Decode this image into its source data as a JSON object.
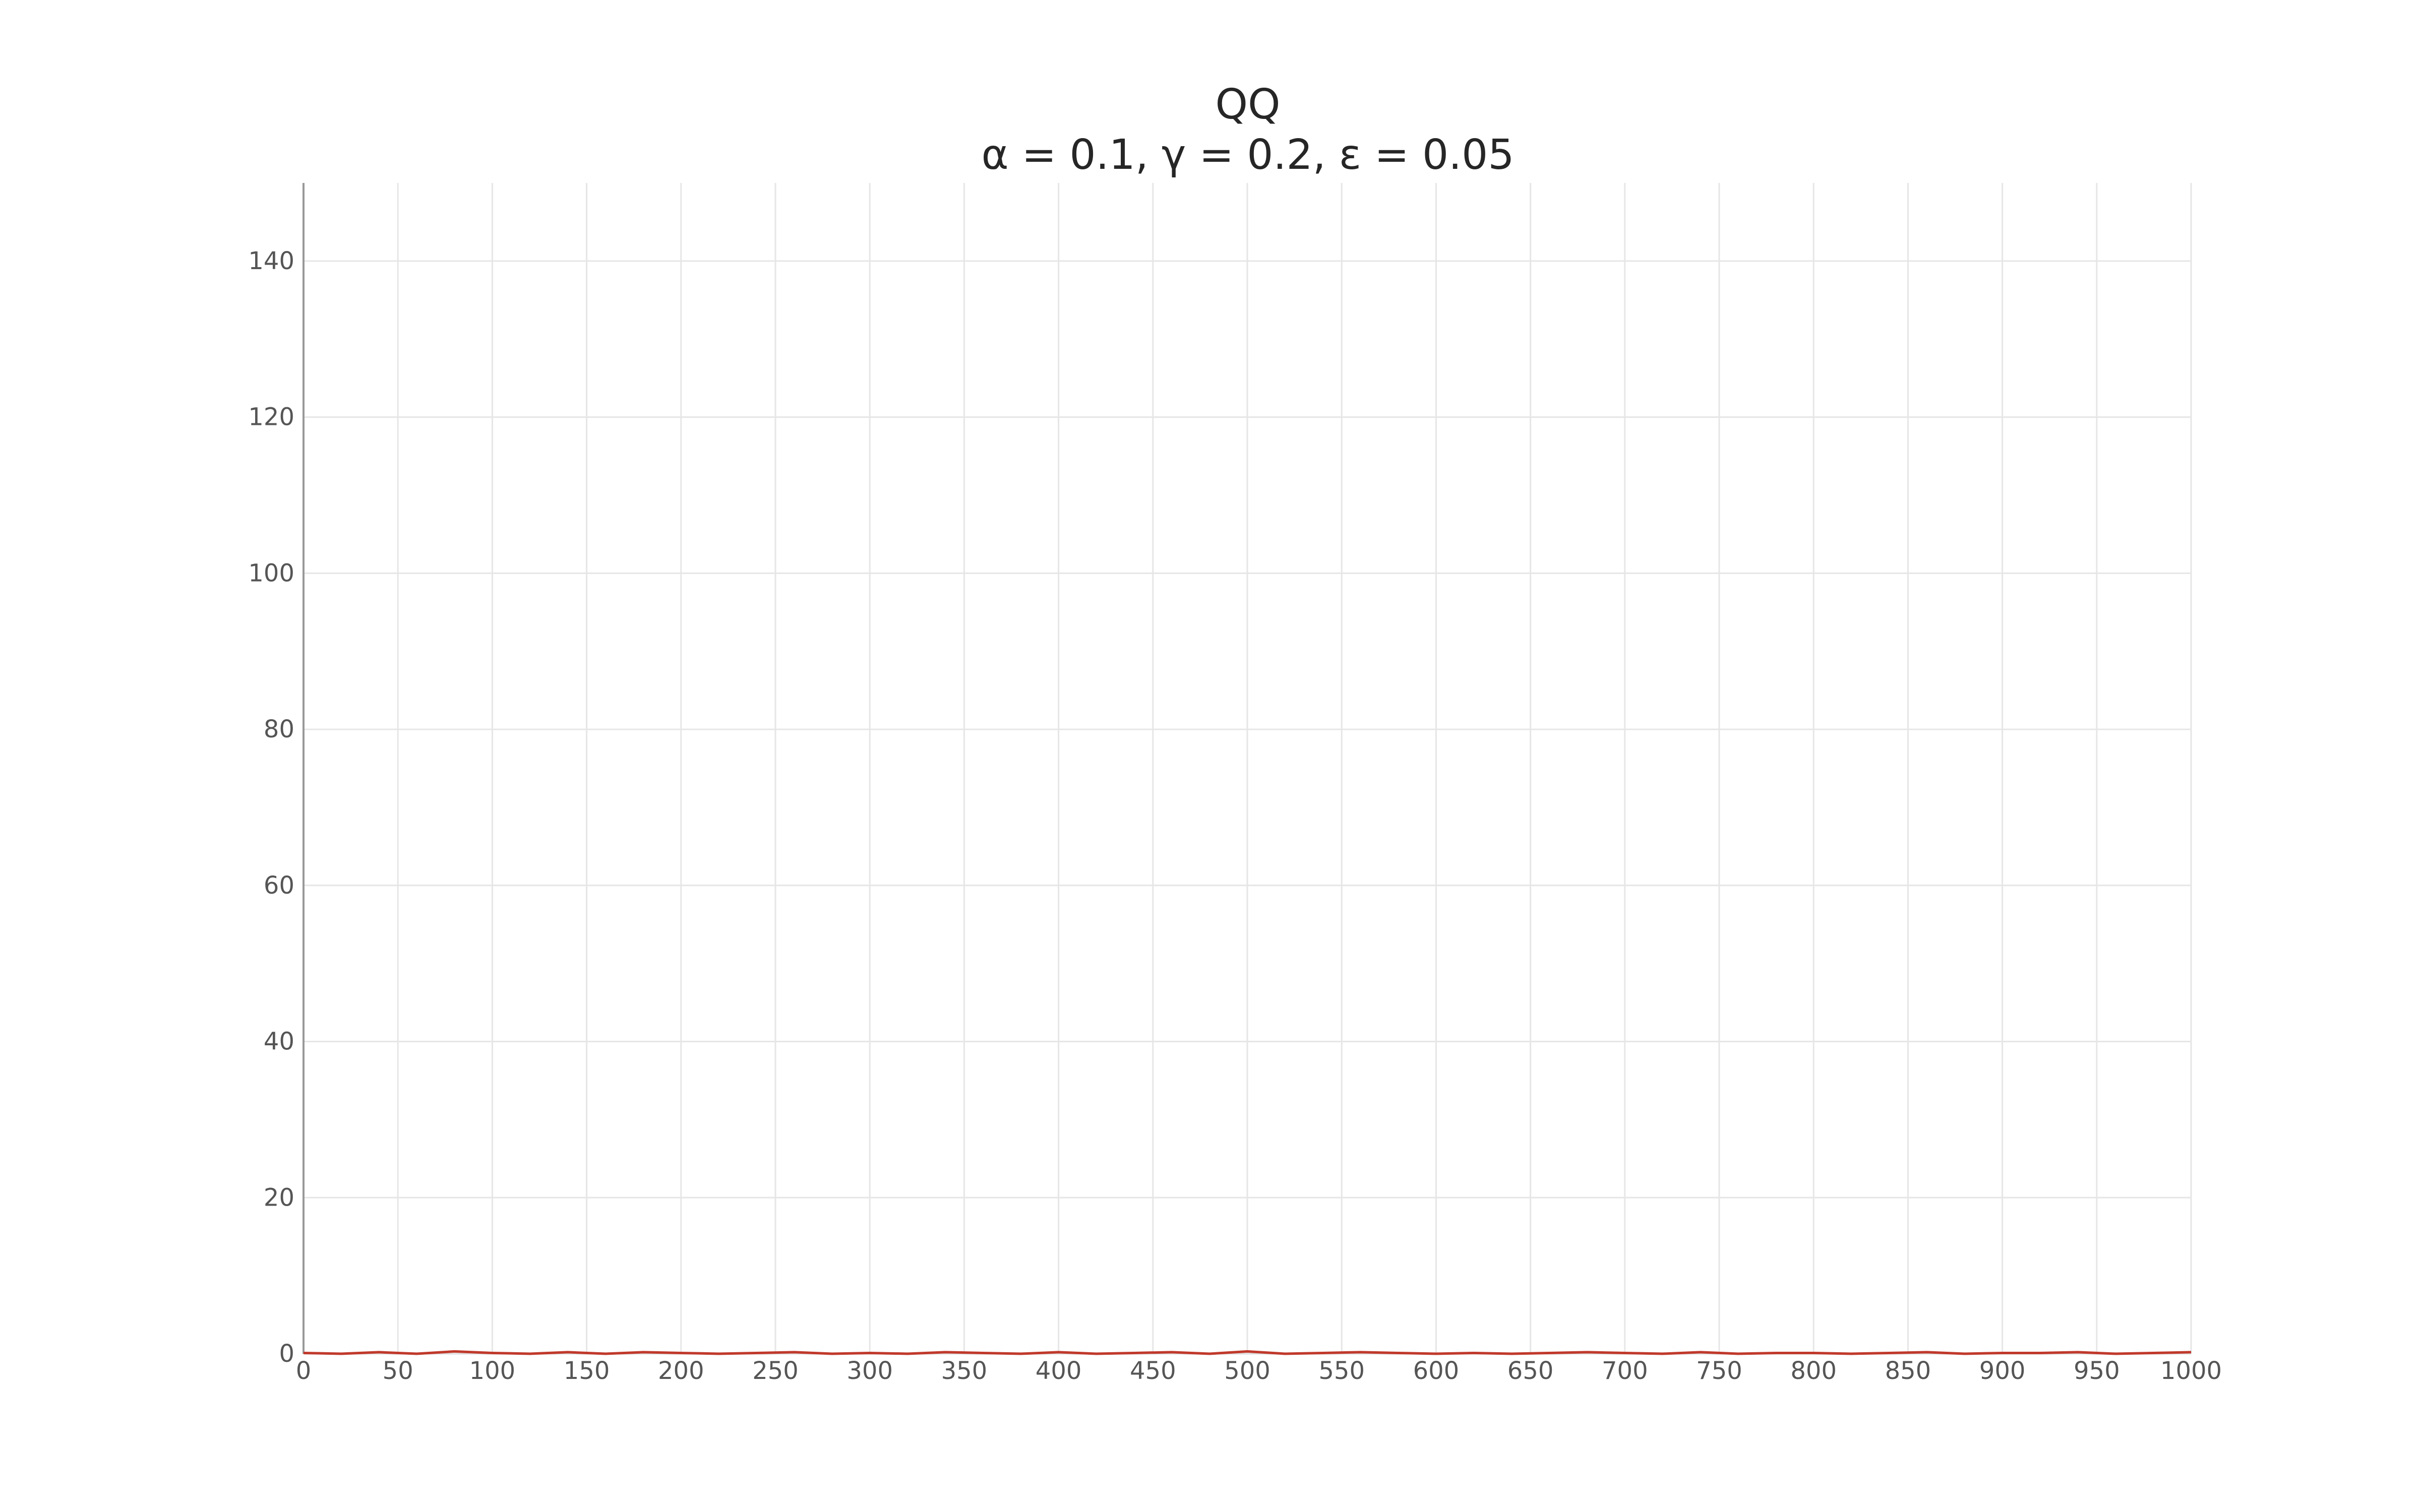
{
  "chart_data": {
    "type": "line",
    "title": "QQ",
    "subtitle": "α = 0.1, γ = 0.2, ε = 0.05",
    "xlabel": "",
    "ylabel": "",
    "xlim": [
      0,
      1000
    ],
    "ylim": [
      0,
      150
    ],
    "x_ticks": [
      0,
      50,
      100,
      150,
      200,
      250,
      300,
      350,
      400,
      450,
      500,
      550,
      600,
      650,
      700,
      750,
      800,
      850,
      900,
      950,
      1000
    ],
    "y_ticks": [
      0,
      20,
      40,
      60,
      80,
      100,
      120,
      140
    ],
    "grid": true,
    "legend": false,
    "series": [
      {
        "color": "#c0392b",
        "x": [
          0,
          20,
          40,
          60,
          80,
          100,
          120,
          140,
          160,
          180,
          200,
          220,
          240,
          260,
          280,
          300,
          320,
          340,
          360,
          380,
          400,
          420,
          440,
          460,
          480,
          500,
          520,
          540,
          560,
          580,
          600,
          620,
          640,
          660,
          680,
          700,
          720,
          740,
          760,
          780,
          800,
          820,
          840,
          860,
          880,
          900,
          920,
          940,
          960,
          980,
          1000
        ],
        "y": [
          0.1,
          0,
          0.2,
          0,
          0.3,
          0.1,
          0,
          0.2,
          0,
          0.2,
          0.1,
          0,
          0.1,
          0.2,
          0,
          0.1,
          0,
          0.2,
          0.1,
          0,
          0.2,
          0,
          0.1,
          0.2,
          0,
          0.3,
          0,
          0.1,
          0.2,
          0.1,
          0,
          0.1,
          0,
          0.1,
          0.2,
          0.1,
          0,
          0.2,
          0,
          0.1,
          0.1,
          0,
          0.1,
          0.2,
          0,
          0.1,
          0.1,
          0.2,
          0,
          0.1,
          0.2
        ]
      }
    ]
  }
}
